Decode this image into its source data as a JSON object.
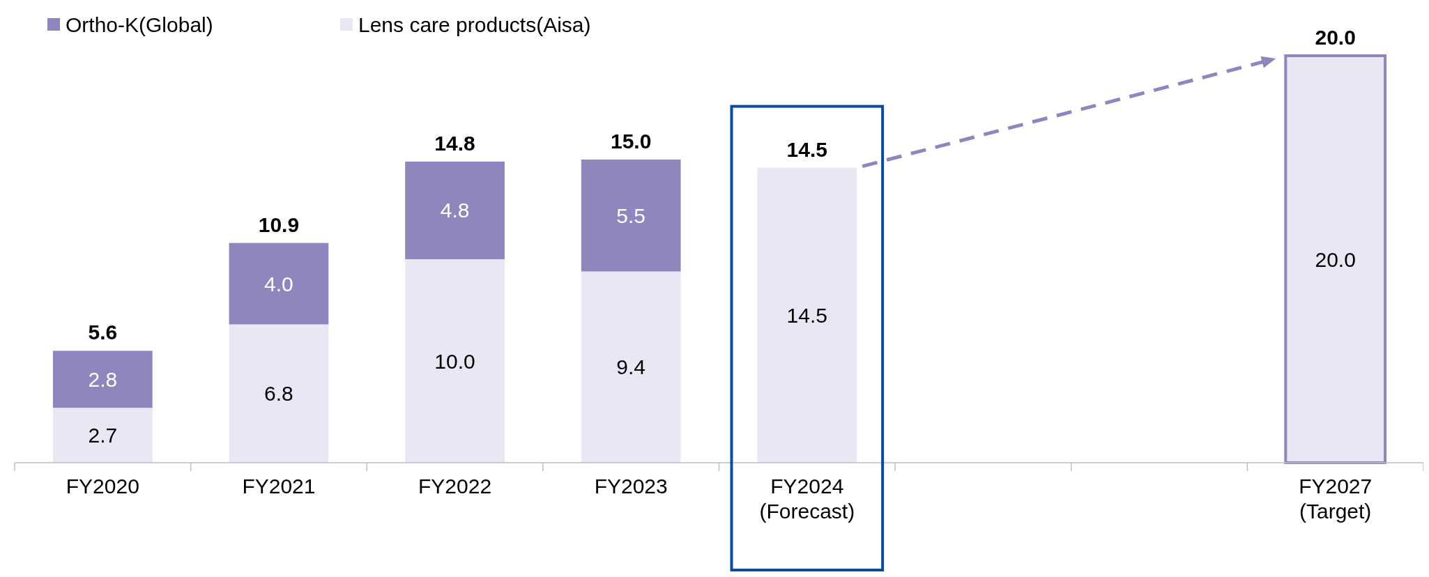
{
  "chart_data": {
    "type": "bar",
    "stacked": true,
    "categories": [
      "FY2020",
      "FY2021",
      "FY2022",
      "FY2023",
      "FY2024\n(Forecast)",
      null,
      null,
      "FY2027\n(Target)"
    ],
    "series": [
      {
        "name": "Lens care products(Aisa)",
        "color": "#e9e7f3",
        "values": [
          2.7,
          6.8,
          10.0,
          9.4,
          14.5,
          null,
          null,
          20.0
        ],
        "value_labels": [
          "2.7",
          "6.8",
          "10.0",
          "9.4",
          "14.5",
          null,
          null,
          "20.0"
        ]
      },
      {
        "name": "Ortho-K(Global)",
        "color": "#8e86bd",
        "values": [
          2.8,
          4.0,
          4.8,
          5.5,
          null,
          null,
          null,
          null
        ],
        "value_labels": [
          "2.8",
          "4.0",
          "4.8",
          "5.5",
          null,
          null,
          null,
          null
        ]
      }
    ],
    "totals": [
      "5.6",
      "10.9",
      "14.8",
      "15.0",
      "14.5",
      null,
      null,
      "20.0"
    ],
    "legend": "top left"
  }
}
